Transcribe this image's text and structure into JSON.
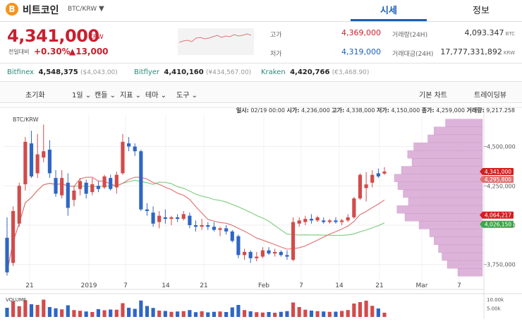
{
  "header": {
    "coin_logo": "B",
    "coin_name": "비트코인",
    "pair": "BTC/KRW",
    "pair_caret": "▼",
    "tabs": [
      {
        "label": "시세"
      },
      {
        "label": "정보"
      }
    ]
  },
  "price": {
    "current": "4,341,000",
    "currency": "KRW",
    "change_label": "전일대비",
    "change_pct": "+0.30%",
    "change_amt": "▲13,000"
  },
  "stats": {
    "high_label": "고가",
    "high_value": "4,369,000",
    "low_label": "저가",
    "low_value": "4,319,000",
    "volume_label": "거래량(24H)",
    "volume_value": "4,093.347",
    "volume_unit": "BTC",
    "amount_label": "거래대금(24H)",
    "amount_value": "17,777,331,892",
    "amount_unit": "KRW"
  },
  "exchanges": [
    {
      "name": "Bitfinex",
      "value": "4,548,375",
      "sub": "($4,043.00)"
    },
    {
      "name": "Bitflyer",
      "value": "4,410,160",
      "sub": "(¥434,567.00)"
    },
    {
      "name": "Kraken",
      "value": "4,420,766",
      "sub": "(€3,468.90)"
    }
  ],
  "toolbar": {
    "reset": "초기화",
    "interval": "1일",
    "candle": "캔들",
    "indicator": "지표",
    "theme": "테마",
    "tools": "도구",
    "basic_chart": "기본 차트",
    "trading_view": "트레이딩뷰"
  },
  "ohlc_bar": {
    "date_label": "일시:",
    "date_value": "02/19 00:00",
    "open_label": "시가:",
    "open_value": "4,236,000",
    "high_label": "고가:",
    "high_value": "4,338,000",
    "low_label": "저가:",
    "low_value": "4,150,000",
    "close_label": "종가:",
    "close_value": "4,259,000",
    "vol_label": "거래량:",
    "vol_value": "9,217.258"
  },
  "chart_labels": {
    "pair_tag": "BTC/KRW",
    "volume_tag": "VOLUME"
  },
  "colors": {
    "up": "#d24b4b",
    "down": "#2f66c4",
    "ma_short": "#e07070",
    "ma_long": "#7acb7a",
    "volume_profile": "#d8a6d4",
    "accent": "#1a5fb4"
  },
  "chart_data": {
    "type": "candlestick",
    "x_tick_labels": [
      "21",
      "2019",
      "7",
      "14",
      "21",
      "Feb",
      "7",
      "14",
      "21",
      "Mar",
      "7"
    ],
    "y_tick_labels": [
      "4,500,000",
      "4,250,000",
      "4,000,000",
      "3,750,000"
    ],
    "ylim": [
      3650000,
      4700000
    ],
    "volume_tick_labels": [
      "10.00k",
      "5.00k"
    ],
    "price_tags": [
      {
        "value": 4341000,
        "label": "4,341,000",
        "color": "#d02020"
      },
      {
        "value": 4295800,
        "label": "4,295,800",
        "color": "#e07070"
      },
      {
        "value": 4064217,
        "label": "4,064,217",
        "color": "#d02020"
      },
      {
        "value": 4026150,
        "label": "4,026,150",
        "color": "#3aa64a"
      }
    ],
    "candles": [
      {
        "o": 3920000,
        "h": 4050000,
        "l": 3680000,
        "c": 3700000
      },
      {
        "o": 3760000,
        "h": 4120000,
        "l": 3740000,
        "c": 4090000
      },
      {
        "o": 4010000,
        "h": 4270000,
        "l": 3990000,
        "c": 4250000
      },
      {
        "o": 4260000,
        "h": 4560000,
        "l": 4220000,
        "c": 4530000
      },
      {
        "o": 4520000,
        "h": 4600000,
        "l": 4300000,
        "c": 4310000
      },
      {
        "o": 4330000,
        "h": 4580000,
        "l": 4300000,
        "c": 4450000
      },
      {
        "o": 4430000,
        "h": 4640000,
        "l": 4400000,
        "c": 4470000
      },
      {
        "o": 4480000,
        "h": 4540000,
        "l": 4300000,
        "c": 4330000
      },
      {
        "o": 4300000,
        "h": 4350000,
        "l": 4180000,
        "c": 4200000
      },
      {
        "o": 4190000,
        "h": 4350000,
        "l": 4170000,
        "c": 4300000
      },
      {
        "o": 4270000,
        "h": 4330000,
        "l": 4060000,
        "c": 4110000
      },
      {
        "o": 4160000,
        "h": 4250000,
        "l": 4120000,
        "c": 4220000
      },
      {
        "o": 4230000,
        "h": 4300000,
        "l": 4190000,
        "c": 4280000
      },
      {
        "o": 4270000,
        "h": 4290000,
        "l": 4170000,
        "c": 4200000
      },
      {
        "o": 4210000,
        "h": 4300000,
        "l": 4190000,
        "c": 4260000
      },
      {
        "o": 4250000,
        "h": 4280000,
        "l": 4210000,
        "c": 4230000
      },
      {
        "o": 4240000,
        "h": 4320000,
        "l": 4230000,
        "c": 4310000
      },
      {
        "o": 4300000,
        "h": 4320000,
        "l": 4220000,
        "c": 4230000
      },
      {
        "o": 4240000,
        "h": 4340000,
        "l": 4200000,
        "c": 4320000
      },
      {
        "o": 4330000,
        "h": 4580000,
        "l": 4320000,
        "c": 4530000
      },
      {
        "o": 4520000,
        "h": 4560000,
        "l": 4470000,
        "c": 4500000
      },
      {
        "o": 4500000,
        "h": 4520000,
        "l": 4440000,
        "c": 4470000
      },
      {
        "o": 4470000,
        "h": 4480000,
        "l": 4090000,
        "c": 4100000
      },
      {
        "o": 4100000,
        "h": 4140000,
        "l": 4060000,
        "c": 4090000
      },
      {
        "o": 4080000,
        "h": 4120000,
        "l": 3990000,
        "c": 4010000
      },
      {
        "o": 4020000,
        "h": 4090000,
        "l": 3980000,
        "c": 4060000
      },
      {
        "o": 4050000,
        "h": 4100000,
        "l": 4010000,
        "c": 4040000
      },
      {
        "o": 4040000,
        "h": 4060000,
        "l": 4000000,
        "c": 4050000
      },
      {
        "o": 4050000,
        "h": 4070000,
        "l": 4020000,
        "c": 4040000
      },
      {
        "o": 4040000,
        "h": 4090000,
        "l": 4030000,
        "c": 4070000
      },
      {
        "o": 4060000,
        "h": 4080000,
        "l": 3980000,
        "c": 4000000
      },
      {
        "o": 4000000,
        "h": 4030000,
        "l": 3960000,
        "c": 3990000
      },
      {
        "o": 3990000,
        "h": 4040000,
        "l": 3970000,
        "c": 4000000
      },
      {
        "o": 4000000,
        "h": 4020000,
        "l": 3970000,
        "c": 3990000
      },
      {
        "o": 3990000,
        "h": 4020000,
        "l": 3960000,
        "c": 3970000
      },
      {
        "o": 3970000,
        "h": 3990000,
        "l": 3930000,
        "c": 3980000
      },
      {
        "o": 3980000,
        "h": 4000000,
        "l": 3940000,
        "c": 3960000
      },
      {
        "o": 3960000,
        "h": 3970000,
        "l": 3890000,
        "c": 3900000
      },
      {
        "o": 3930000,
        "h": 3940000,
        "l": 3790000,
        "c": 3810000
      },
      {
        "o": 3810000,
        "h": 3850000,
        "l": 3780000,
        "c": 3830000
      },
      {
        "o": 3830000,
        "h": 3840000,
        "l": 3760000,
        "c": 3790000
      },
      {
        "o": 3790000,
        "h": 3830000,
        "l": 3770000,
        "c": 3800000
      },
      {
        "o": 3800000,
        "h": 3860000,
        "l": 3790000,
        "c": 3840000
      },
      {
        "o": 3840000,
        "h": 3860000,
        "l": 3810000,
        "c": 3820000
      },
      {
        "o": 3820000,
        "h": 3850000,
        "l": 3800000,
        "c": 3830000
      },
      {
        "o": 3830000,
        "h": 3840000,
        "l": 3800000,
        "c": 3810000
      },
      {
        "o": 3810000,
        "h": 3840000,
        "l": 3780000,
        "c": 3800000
      },
      {
        "o": 3780000,
        "h": 4050000,
        "l": 3770000,
        "c": 4020000
      },
      {
        "o": 4010000,
        "h": 4050000,
        "l": 3990000,
        "c": 4030000
      },
      {
        "o": 4020000,
        "h": 4060000,
        "l": 4000000,
        "c": 4040000
      },
      {
        "o": 4040000,
        "h": 4070000,
        "l": 4010000,
        "c": 4030000
      },
      {
        "o": 4030000,
        "h": 4060000,
        "l": 4020000,
        "c": 4050000
      },
      {
        "o": 4030000,
        "h": 4050000,
        "l": 4010000,
        "c": 4020000
      },
      {
        "o": 4020000,
        "h": 4040000,
        "l": 4010000,
        "c": 4030000
      },
      {
        "o": 4030000,
        "h": 4050000,
        "l": 4010000,
        "c": 4020000
      },
      {
        "o": 4020000,
        "h": 4040000,
        "l": 4000000,
        "c": 4030000
      },
      {
        "o": 4030000,
        "h": 4070000,
        "l": 4020000,
        "c": 4050000
      },
      {
        "o": 4050000,
        "h": 4180000,
        "l": 4040000,
        "c": 4170000
      },
      {
        "o": 4170000,
        "h": 4330000,
        "l": 4160000,
        "c": 4320000
      },
      {
        "o": 4236000,
        "h": 4338000,
        "l": 4150000,
        "c": 4259000
      },
      {
        "o": 4270000,
        "h": 4350000,
        "l": 4240000,
        "c": 4320000
      },
      {
        "o": 4330000,
        "h": 4360000,
        "l": 4300000,
        "c": 4310000
      },
      {
        "o": 4328000,
        "h": 4369000,
        "l": 4319000,
        "c": 4341000
      }
    ],
    "volume": [
      5200,
      8900,
      6100,
      9500,
      7200,
      6800,
      9800,
      5600,
      4900,
      4300,
      6600,
      3900,
      3500,
      3100,
      2800,
      4400,
      3800,
      4200,
      4100,
      7800,
      5200,
      4600,
      9300,
      6200,
      5100,
      3600,
      3400,
      2900,
      3100,
      3300,
      3900,
      2700,
      3200,
      2600,
      2900,
      3100,
      2800,
      5400,
      6800,
      3900,
      3200,
      2700,
      2500,
      2800,
      2400,
      2900,
      3300,
      8200,
      5600,
      4100,
      3600,
      3300,
      3100,
      2900,
      3000,
      3400,
      3900,
      7600,
      8400,
      9217,
      6300,
      4800,
      2400
    ],
    "volume_profile": [
      {
        "price": 4650000,
        "vol": 0.42
      },
      {
        "price": 4600000,
        "vol": 0.55
      },
      {
        "price": 4550000,
        "vol": 0.62
      },
      {
        "price": 4500000,
        "vol": 0.78
      },
      {
        "price": 4450000,
        "vol": 0.85
      },
      {
        "price": 4400000,
        "vol": 0.8
      },
      {
        "price": 4350000,
        "vol": 0.92
      },
      {
        "price": 4300000,
        "vol": 1.0
      },
      {
        "price": 4250000,
        "vol": 0.96
      },
      {
        "price": 4200000,
        "vol": 0.9
      },
      {
        "price": 4150000,
        "vol": 0.84
      },
      {
        "price": 4100000,
        "vol": 0.97
      },
      {
        "price": 4050000,
        "vol": 0.88
      },
      {
        "price": 4000000,
        "vol": 0.72
      },
      {
        "price": 3950000,
        "vol": 0.6
      },
      {
        "price": 3900000,
        "vol": 0.55
      },
      {
        "price": 3850000,
        "vol": 0.5
      },
      {
        "price": 3800000,
        "vol": 0.46
      },
      {
        "price": 3750000,
        "vol": 0.4
      },
      {
        "price": 3700000,
        "vol": 0.28
      }
    ]
  }
}
